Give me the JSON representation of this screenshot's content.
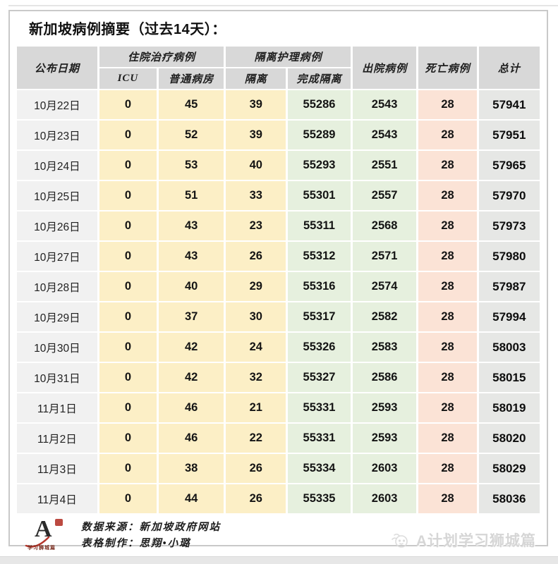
{
  "page": {
    "title": "新加坡病例摘要（过去14天）："
  },
  "table": {
    "headers": {
      "date": "公布日期",
      "hospitalized_group": "住院治疗病例",
      "icu": "ICU",
      "general_ward": "普通病房",
      "isolation_group": "隔离护理病例",
      "isolated": "隔离",
      "completed_isolation": "完成隔离",
      "discharged": "出院病例",
      "deaths": "死亡病例",
      "total": "总计"
    },
    "rows": [
      {
        "date": "10月22日",
        "icu": "0",
        "ward": "45",
        "iso": "39",
        "done": "55286",
        "dis": "2543",
        "death": "28",
        "total": "57941"
      },
      {
        "date": "10月23日",
        "icu": "0",
        "ward": "52",
        "iso": "39",
        "done": "55289",
        "dis": "2543",
        "death": "28",
        "total": "57951"
      },
      {
        "date": "10月24日",
        "icu": "0",
        "ward": "53",
        "iso": "40",
        "done": "55293",
        "dis": "2551",
        "death": "28",
        "total": "57965"
      },
      {
        "date": "10月25日",
        "icu": "0",
        "ward": "51",
        "iso": "33",
        "done": "55301",
        "dis": "2557",
        "death": "28",
        "total": "57970"
      },
      {
        "date": "10月26日",
        "icu": "0",
        "ward": "43",
        "iso": "23",
        "done": "55311",
        "dis": "2568",
        "death": "28",
        "total": "57973"
      },
      {
        "date": "10月27日",
        "icu": "0",
        "ward": "43",
        "iso": "26",
        "done": "55312",
        "dis": "2571",
        "death": "28",
        "total": "57980"
      },
      {
        "date": "10月28日",
        "icu": "0",
        "ward": "40",
        "iso": "29",
        "done": "55316",
        "dis": "2574",
        "death": "28",
        "total": "57987"
      },
      {
        "date": "10月29日",
        "icu": "0",
        "ward": "37",
        "iso": "30",
        "done": "55317",
        "dis": "2582",
        "death": "28",
        "total": "57994"
      },
      {
        "date": "10月30日",
        "icu": "0",
        "ward": "42",
        "iso": "24",
        "done": "55326",
        "dis": "2583",
        "death": "28",
        "total": "58003"
      },
      {
        "date": "10月31日",
        "icu": "0",
        "ward": "42",
        "iso": "32",
        "done": "55327",
        "dis": "2586",
        "death": "28",
        "total": "58015"
      },
      {
        "date": "11月1日",
        "icu": "0",
        "ward": "46",
        "iso": "21",
        "done": "55331",
        "dis": "2593",
        "death": "28",
        "total": "58019"
      },
      {
        "date": "11月2日",
        "icu": "0",
        "ward": "46",
        "iso": "22",
        "done": "55331",
        "dis": "2593",
        "death": "28",
        "total": "58020"
      },
      {
        "date": "11月3日",
        "icu": "0",
        "ward": "38",
        "iso": "26",
        "done": "55334",
        "dis": "2603",
        "death": "28",
        "total": "58029"
      },
      {
        "date": "11月4日",
        "icu": "0",
        "ward": "44",
        "iso": "26",
        "done": "55335",
        "dis": "2603",
        "death": "28",
        "total": "58036"
      }
    ]
  },
  "chart_data": {
    "type": "table",
    "title": "新加坡病例摘要（过去14天）：",
    "columns": [
      "公布日期",
      "ICU",
      "普通病房",
      "隔离",
      "完成隔离",
      "出院病例",
      "死亡病例",
      "总计"
    ],
    "column_groups": [
      {
        "label": "住院治疗病例",
        "children": [
          "ICU",
          "普通病房"
        ]
      },
      {
        "label": "隔离护理病例",
        "children": [
          "隔离",
          "完成隔离"
        ]
      }
    ],
    "rows": [
      [
        "10月22日",
        0,
        45,
        39,
        55286,
        2543,
        28,
        57941
      ],
      [
        "10月23日",
        0,
        52,
        39,
        55289,
        2543,
        28,
        57951
      ],
      [
        "10月24日",
        0,
        53,
        40,
        55293,
        2551,
        28,
        57965
      ],
      [
        "10月25日",
        0,
        51,
        33,
        55301,
        2557,
        28,
        57970
      ],
      [
        "10月26日",
        0,
        43,
        23,
        55311,
        2568,
        28,
        57973
      ],
      [
        "10月27日",
        0,
        43,
        26,
        55312,
        2571,
        28,
        57980
      ],
      [
        "10月28日",
        0,
        40,
        29,
        55316,
        2574,
        28,
        57987
      ],
      [
        "10月29日",
        0,
        37,
        30,
        55317,
        2582,
        28,
        57994
      ],
      [
        "10月30日",
        0,
        42,
        24,
        55326,
        2583,
        28,
        58003
      ],
      [
        "10月31日",
        0,
        42,
        32,
        55327,
        2586,
        28,
        58015
      ],
      [
        "11月1日",
        0,
        46,
        21,
        55331,
        2593,
        28,
        58019
      ],
      [
        "11月2日",
        0,
        46,
        22,
        55331,
        2593,
        28,
        58020
      ],
      [
        "11月3日",
        0,
        38,
        26,
        55334,
        2603,
        28,
        58029
      ],
      [
        "11月4日",
        0,
        44,
        26,
        55335,
        2603,
        28,
        58036
      ]
    ]
  },
  "footer": {
    "source_label": "数据来源：新加坡政府网站",
    "maker_label": "表格制作：思翔•小璐",
    "logo_letter": "A",
    "logo_caption": "学习狮城篇",
    "watermark_text": "A计划学习狮城篇"
  },
  "colors": {
    "cell_yellow": "#FCEFC6",
    "cell_green": "#E6F0DE",
    "cell_pink": "#FBE3D6",
    "header_gray": "#D8D8D8",
    "date_gray": "#F1F1F1",
    "total_gray": "#E6E7E5",
    "card_border": "#C9C9C9",
    "logo_red": "#B5362C",
    "watermark_gray": "#D6D6D6"
  }
}
